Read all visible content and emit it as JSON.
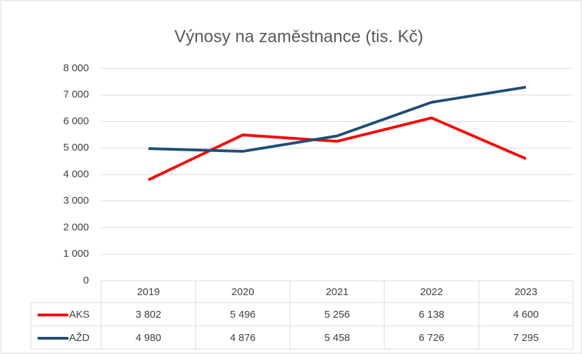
{
  "chart_data": {
    "type": "line",
    "title": "Výnosy na zaměstnance (tis. Kč)",
    "categories": [
      "2019",
      "2020",
      "2021",
      "2022",
      "2023"
    ],
    "series": [
      {
        "name": "AKS",
        "color": "#ff0000",
        "values": [
          3802,
          5496,
          5256,
          6138,
          4600
        ],
        "value_labels": [
          "3 802",
          "5 496",
          "5 256",
          "6 138",
          "4 600"
        ]
      },
      {
        "name": "AŽD",
        "color": "#1f4e79",
        "values": [
          4980,
          4876,
          5458,
          6726,
          7295
        ],
        "value_labels": [
          "4 980",
          "4 876",
          "5 458",
          "6 726",
          "7 295"
        ]
      }
    ],
    "ylim": [
      0,
      8000
    ],
    "yticks": [
      0,
      {
        "value": 1000,
        "label": "1 000"
      },
      {
        "value": 2000,
        "label": "2 000"
      },
      {
        "value": 3000,
        "label": "3 000"
      },
      {
        "value": 4000,
        "label": "4 000"
      },
      {
        "value": 5000,
        "label": "5 000"
      },
      {
        "value": 6000,
        "label": "6 000"
      },
      {
        "value": 7000,
        "label": "7 000"
      },
      {
        "value": 8000,
        "label": "8 000"
      }
    ],
    "grid": true
  }
}
